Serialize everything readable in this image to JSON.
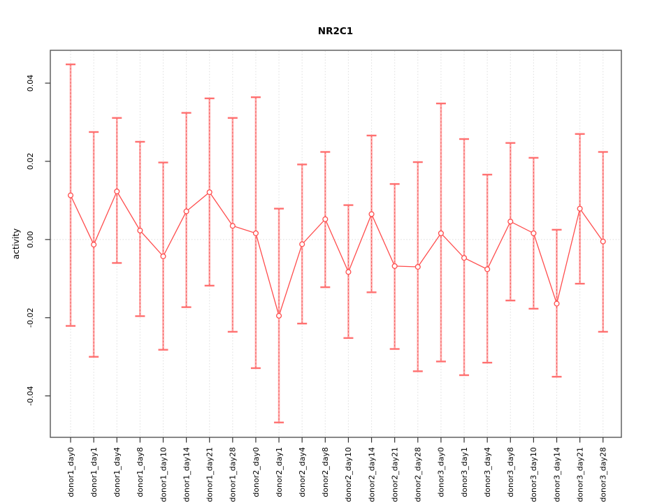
{
  "figure": {
    "title": "NR2C1",
    "background": "#ffffff"
  },
  "chart_data": {
    "type": "line",
    "title": "NR2C1",
    "xlabel": "",
    "ylabel": "activity",
    "legend_position": "none",
    "grid": "dotted vertical gridline at each category and dotted horizontal line at y=0",
    "marker": "open-circle",
    "error_bars": true,
    "ylim": [
      -0.0506,
      0.0484
    ],
    "yticks": [
      0.04,
      0.02,
      0.0,
      -0.02,
      -0.04
    ],
    "ytick_labels": [
      "0.04",
      "0.02",
      "0.00",
      "-0.02",
      "-0.04"
    ],
    "categories": [
      "donor1_day0",
      "donor1_day1",
      "donor1_day4",
      "donor1_day8",
      "donor1_day10",
      "donor1_day14",
      "donor1_day21",
      "donor1_day28",
      "donor2_day0",
      "donor2_day1",
      "donor2_day4",
      "donor2_day8",
      "donor2_day10",
      "donor2_day14",
      "donor2_day21",
      "donor2_day28",
      "donor3_day0",
      "donor3_day1",
      "donor3_day4",
      "donor3_day8",
      "donor3_day10",
      "donor3_day14",
      "donor3_day21",
      "donor3_day28"
    ],
    "series": [
      {
        "name": "activity",
        "values": [
          0.0113,
          -0.0013,
          0.0123,
          0.0023,
          -0.0043,
          0.0072,
          0.0121,
          0.0035,
          0.0016,
          -0.0195,
          -0.0012,
          0.0052,
          -0.0083,
          0.0065,
          -0.0068,
          -0.007,
          0.0016,
          -0.0047,
          -0.0076,
          0.0046,
          0.0016,
          -0.0164,
          0.0079,
          -0.0005
        ],
        "error_high": [
          0.0448,
          0.0275,
          0.0311,
          0.025,
          0.0197,
          0.0324,
          0.0361,
          0.0311,
          0.0364,
          0.0079,
          0.0192,
          0.0224,
          0.0088,
          0.0266,
          0.0142,
          0.0198,
          0.0348,
          0.0257,
          0.0166,
          0.0247,
          0.0209,
          0.0025,
          0.027,
          0.0224
        ],
        "error_low": [
          -0.0221,
          -0.03,
          -0.006,
          -0.0196,
          -0.0282,
          -0.0173,
          -0.0118,
          -0.0236,
          -0.0329,
          -0.0468,
          -0.0215,
          -0.0122,
          -0.0252,
          -0.0135,
          -0.028,
          -0.0337,
          -0.0312,
          -0.0347,
          -0.0315,
          -0.0156,
          -0.0177,
          -0.0351,
          -0.0113,
          -0.0236
        ]
      }
    ],
    "colors": {
      "line": "#ff4d4d",
      "marker_stroke": "#ff4d4d",
      "marker_fill": "#ffffff",
      "error_bar": "#ffa8a8",
      "error_bar_dash": "#f05050",
      "error_cap": "#ff7070",
      "gridline": "#e0e0e0",
      "axis": "#555555",
      "tick": "#333333",
      "text": "#000000"
    }
  }
}
